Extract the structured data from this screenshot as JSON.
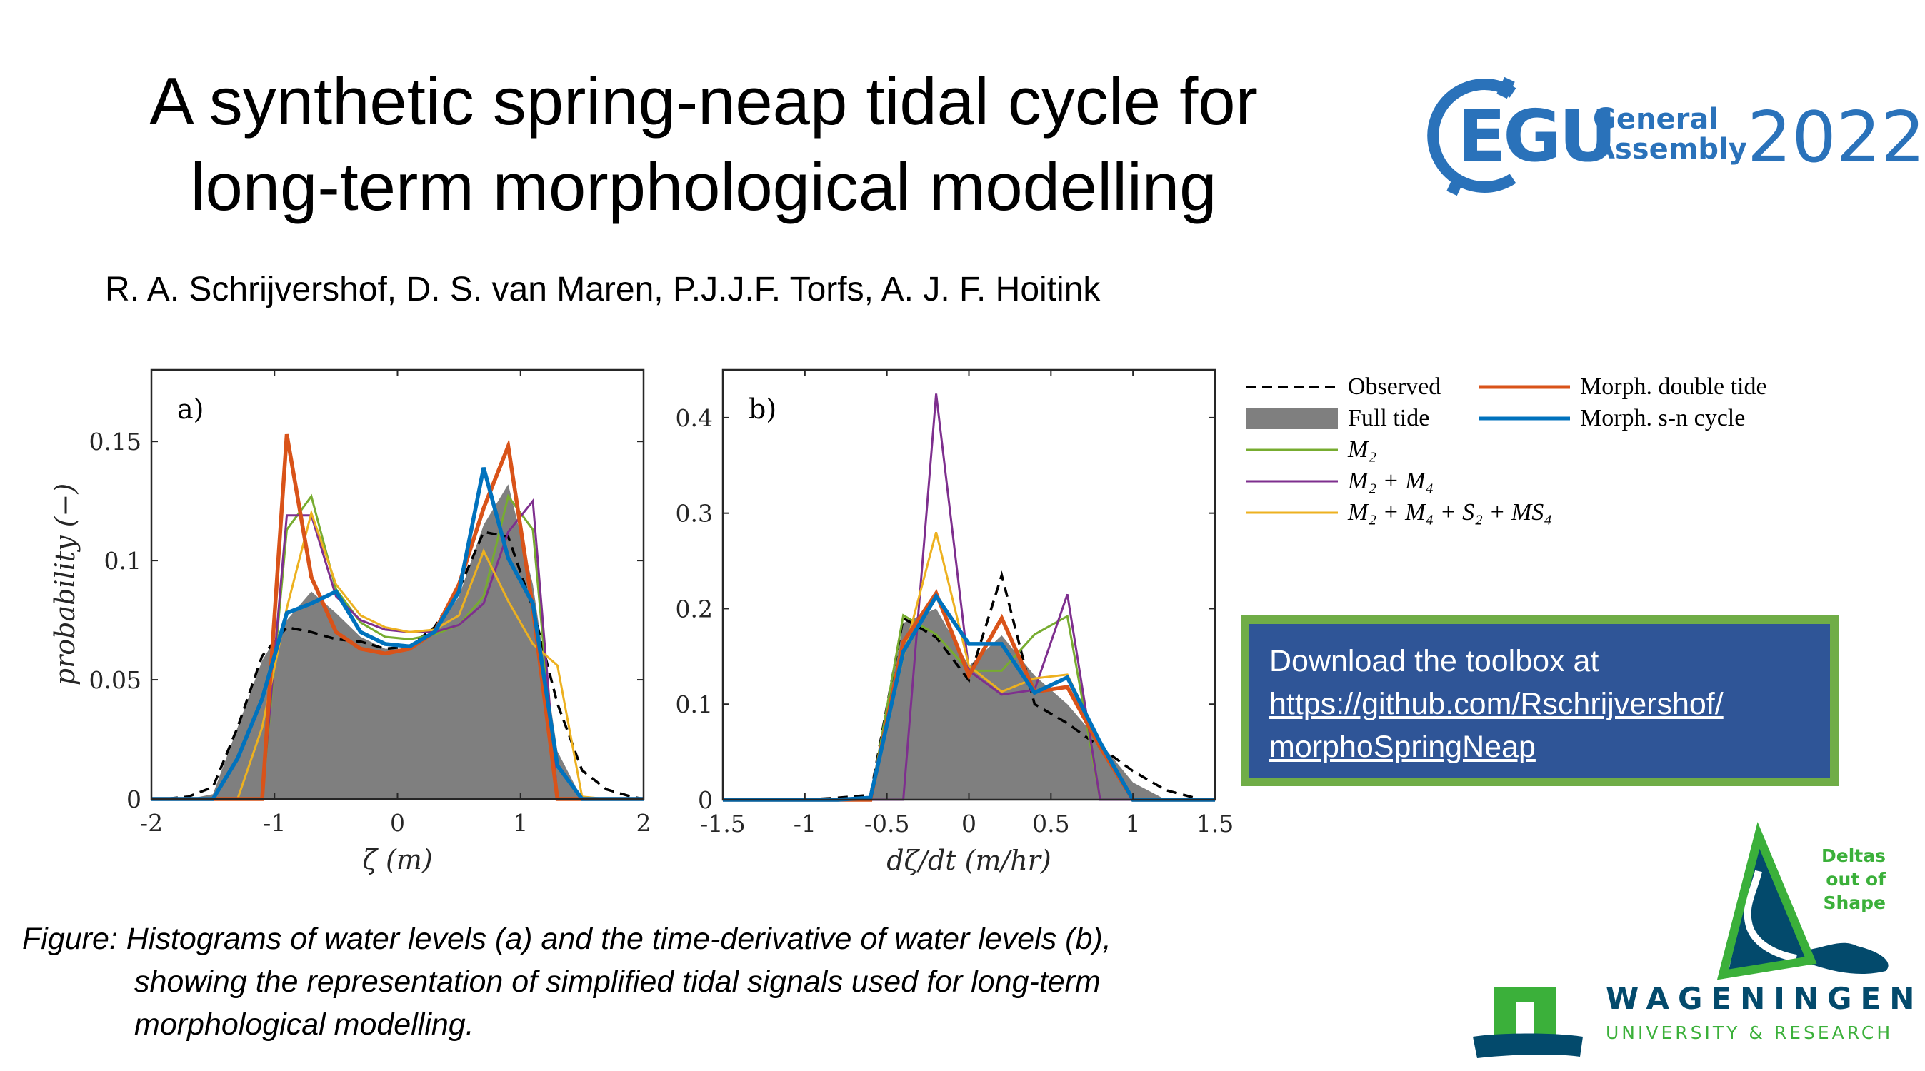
{
  "title": {
    "line1": "A synthetic spring-neap tidal cycle for",
    "line2": "long-term morphological modelling"
  },
  "authors": "R. A. Schrijvershof, D. S. van Maren, P.J.J.F. Torfs, A. J. F. Hoitink",
  "download": {
    "text": "Download the toolbox at",
    "link_line1": "https://github.com/Rschrijvershof/",
    "link_line2": "morphoSpringNeap",
    "fill": "#2F5597",
    "border": "#70AD47"
  },
  "caption": {
    "line1": "Figure: Histograms of water levels (a) and the time-derivative of water levels (b),",
    "line2": "showing the representation of simplified tidal signals used for long-term",
    "line3": "morphological modelling."
  },
  "logos": {
    "egu": {
      "word": "EGU",
      "line1": "General",
      "line2": "Assembly",
      "year": "2022",
      "color": "#2A72BA"
    },
    "deltas": {
      "line1": "Deltas",
      "line2": "out of",
      "line3": "Shape"
    },
    "wur": {
      "line1": "WAGENINGEN",
      "line2": "UNIVERSITY & RESEARCH"
    }
  },
  "legend": [
    {
      "label": "Observed",
      "color": "#000000",
      "style": "dashed"
    },
    {
      "label": "Full tide",
      "color": "#7f7f7f",
      "style": "fill"
    },
    {
      "label": "M₂",
      "color": "#77AC30",
      "style": "thin"
    },
    {
      "label": "M₂ + M₄",
      "color": "#7E2F8E",
      "style": "thin"
    },
    {
      "label": "M₂ + M₄ + S₂ + MS₄",
      "color": "#EDB120",
      "style": "thin"
    },
    {
      "label": "Morph. double tide",
      "color": "#D95319",
      "style": "thick"
    },
    {
      "label": "Morph. s-n cycle",
      "color": "#0072BD",
      "style": "thick"
    }
  ],
  "chart_data": [
    {
      "type": "line",
      "panel_label": "a)",
      "xlabel": "ζ (m)",
      "ylabel": "probability (−)",
      "xlim": [
        -2,
        2
      ],
      "ylim": [
        0,
        0.18
      ],
      "xticks": [
        -2,
        -1,
        0,
        1,
        2
      ],
      "xtick_labels": [
        "-2",
        "-1",
        "0",
        "1",
        "2"
      ],
      "yticks": [
        0,
        0.05,
        0.1,
        0.15
      ],
      "ytick_labels": [
        "0",
        "0.05",
        "0.1",
        "0.15"
      ],
      "grid": false,
      "x": [
        -1.9,
        -1.7,
        -1.5,
        -1.3,
        -1.1,
        -0.9,
        -0.7,
        -0.5,
        -0.3,
        -0.1,
        0.1,
        0.3,
        0.5,
        0.7,
        0.9,
        1.1,
        1.3,
        1.5,
        1.7,
        1.9
      ],
      "series": [
        {
          "name": "Full tide",
          "values": [
            0,
            0,
            0.002,
            0.03,
            0.058,
            0.075,
            0.087,
            0.078,
            0.068,
            0.063,
            0.063,
            0.07,
            0.085,
            0.115,
            0.132,
            0.09,
            0.02,
            0,
            0,
            0
          ]
        },
        {
          "name": "Observed",
          "values": [
            0,
            0.001,
            0.005,
            0.03,
            0.06,
            0.072,
            0.07,
            0.067,
            0.066,
            0.063,
            0.064,
            0.072,
            0.088,
            0.112,
            0.11,
            0.08,
            0.04,
            0.012,
            0.004,
            0.001
          ]
        },
        {
          "name": "M₂",
          "values": [
            0,
            0,
            0,
            0,
            0,
            0.113,
            0.127,
            0.088,
            0.074,
            0.068,
            0.067,
            0.069,
            0.073,
            0.085,
            0.127,
            0.113,
            0,
            0,
            0,
            0
          ]
        },
        {
          "name": "M₂ + M₄",
          "values": [
            0,
            0,
            0,
            0,
            0,
            0.119,
            0.119,
            0.085,
            0.075,
            0.071,
            0.07,
            0.07,
            0.073,
            0.082,
            0.112,
            0.125,
            0,
            0,
            0,
            0
          ]
        },
        {
          "name": "M₂ + M₄ + S₂ + MS₄",
          "values": [
            0,
            0,
            0,
            0,
            0.03,
            0.08,
            0.12,
            0.09,
            0.077,
            0.072,
            0.07,
            0.071,
            0.077,
            0.104,
            0.083,
            0.065,
            0.056,
            0.001,
            0,
            0
          ]
        },
        {
          "name": "Morph. double tide",
          "values": [
            0,
            0,
            0,
            0,
            0,
            0.153,
            0.093,
            0.07,
            0.063,
            0.061,
            0.063,
            0.07,
            0.09,
            0.122,
            0.148,
            0.08,
            0,
            0,
            0,
            0
          ]
        },
        {
          "name": "Morph. s-n cycle",
          "values": [
            0,
            0,
            0,
            0.017,
            0.042,
            0.078,
            0.082,
            0.087,
            0.07,
            0.065,
            0.064,
            0.07,
            0.087,
            0.139,
            0.101,
            0.082,
            0.014,
            0,
            0,
            0
          ]
        }
      ]
    },
    {
      "type": "line",
      "panel_label": "b)",
      "xlabel": "dζ/dt (m/hr)",
      "ylabel": "",
      "xlim": [
        -1.5,
        1.5
      ],
      "ylim": [
        0,
        0.45
      ],
      "xticks": [
        -1.5,
        -1,
        -0.5,
        0,
        0.5,
        1,
        1.5
      ],
      "xtick_labels": [
        "-1.5",
        "-1",
        "-0.5",
        "0",
        "0.5",
        "1",
        "1.5"
      ],
      "yticks": [
        0,
        0.1,
        0.2,
        0.3,
        0.4
      ],
      "ytick_labels": [
        "0",
        "0.1",
        "0.2",
        "0.3",
        "0.4"
      ],
      "grid": false,
      "x": [
        -1.4,
        -1.2,
        -1.0,
        -0.8,
        -0.6,
        -0.4,
        -0.2,
        0,
        0.2,
        0.4,
        0.6,
        0.8,
        1.0,
        1.2,
        1.4
      ],
      "series": [
        {
          "name": "Full tide",
          "values": [
            0,
            0,
            0,
            0,
            0,
            0.185,
            0.2,
            0.14,
            0.172,
            0.13,
            0.1,
            0.06,
            0.018,
            0,
            0
          ]
        },
        {
          "name": "Observed",
          "values": [
            0,
            0,
            0,
            0.002,
            0.005,
            0.19,
            0.17,
            0.125,
            0.235,
            0.1,
            0.08,
            0.055,
            0.03,
            0.01,
            0.001
          ]
        },
        {
          "name": "M₂",
          "values": [
            0,
            0,
            0,
            0,
            0,
            0.193,
            0.173,
            0.135,
            0.135,
            0.173,
            0.192,
            0,
            0,
            0,
            0
          ]
        },
        {
          "name": "M₂ + M₄",
          "values": [
            0,
            0,
            0,
            0,
            0,
            0,
            0.425,
            0.135,
            0.11,
            0.115,
            0.215,
            0,
            0,
            0,
            0
          ]
        },
        {
          "name": "M₂ + M₄ + S₂ + MS₄",
          "values": [
            0,
            0,
            0,
            0,
            0,
            0.15,
            0.28,
            0.14,
            0.113,
            0.127,
            0.131,
            0.06,
            0,
            0,
            0
          ]
        },
        {
          "name": "Morph. double tide",
          "values": [
            0,
            0,
            0,
            0,
            0,
            0.165,
            0.216,
            0.13,
            0.19,
            0.113,
            0.118,
            0.055,
            0,
            0,
            0
          ]
        },
        {
          "name": "Morph. s-n cycle",
          "values": [
            0,
            0,
            0,
            0,
            0.002,
            0.155,
            0.213,
            0.163,
            0.163,
            0.112,
            0.128,
            0.06,
            0,
            0,
            0
          ]
        }
      ]
    }
  ]
}
